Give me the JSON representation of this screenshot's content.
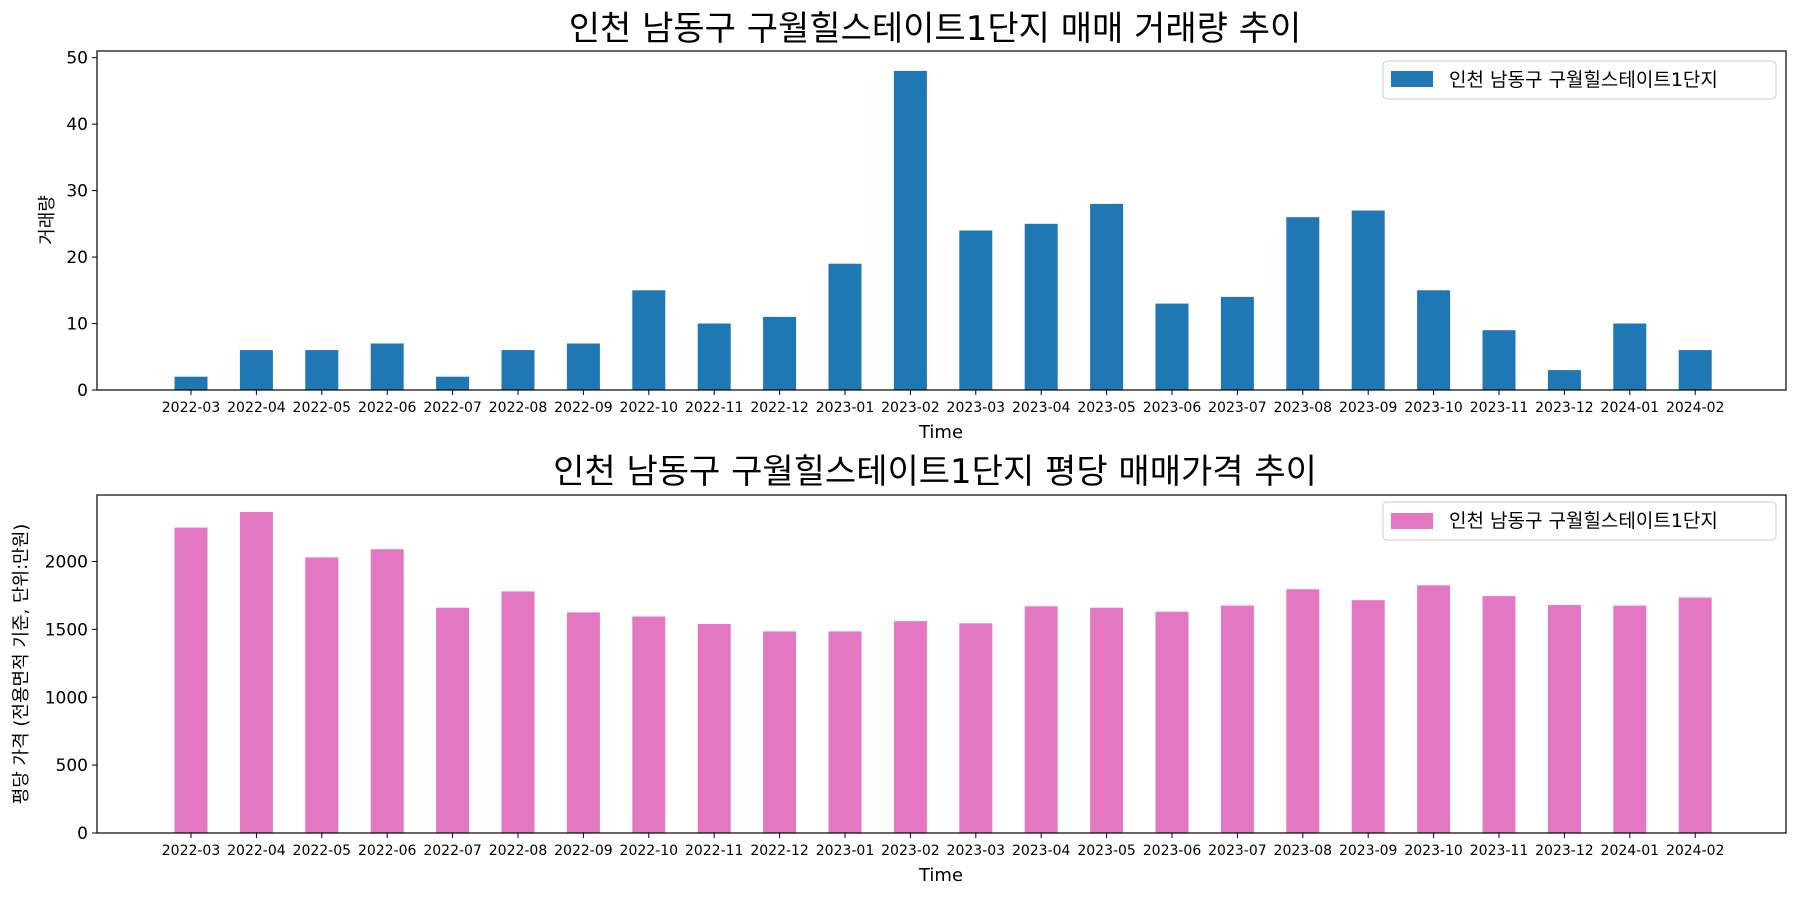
{
  "chart_data": [
    {
      "type": "bar",
      "title": "인천 남동구 구월힐스테이트1단지 매매 거래량 추이",
      "xlabel": "Time",
      "ylabel": "거래량",
      "ylim": [
        0,
        51
      ],
      "yticks": [
        0,
        10,
        20,
        30,
        40,
        50
      ],
      "grid": false,
      "legend_position": "top-right",
      "categories": [
        "2022-03",
        "2022-04",
        "2022-05",
        "2022-06",
        "2022-07",
        "2022-08",
        "2022-09",
        "2022-10",
        "2022-11",
        "2022-12",
        "2023-01",
        "2023-02",
        "2023-03",
        "2023-04",
        "2023-05",
        "2023-06",
        "2023-07",
        "2023-08",
        "2023-09",
        "2023-10",
        "2023-11",
        "2023-12",
        "2024-01",
        "2024-02"
      ],
      "series": [
        {
          "name": "인천 남동구 구월힐스테이트1단지",
          "color": "#1f77b4",
          "values": [
            2,
            6,
            6,
            7,
            2,
            6,
            7,
            15,
            10,
            11,
            19,
            48,
            24,
            25,
            28,
            13,
            14,
            26,
            27,
            15,
            9,
            3,
            10,
            6
          ]
        }
      ]
    },
    {
      "type": "bar",
      "title": "인천 남동구 구월힐스테이트1단지 평당 매매가격 추이",
      "xlabel": "Time",
      "ylabel": "평당 가격 (전용면적 기준, 단위:만원)",
      "ylim": [
        0,
        2490
      ],
      "yticks": [
        0,
        500,
        1000,
        1500,
        2000
      ],
      "grid": false,
      "legend_position": "top-right",
      "categories": [
        "2022-03",
        "2022-04",
        "2022-05",
        "2022-06",
        "2022-07",
        "2022-08",
        "2022-09",
        "2022-10",
        "2022-11",
        "2022-12",
        "2023-01",
        "2023-02",
        "2023-03",
        "2023-04",
        "2023-05",
        "2023-06",
        "2023-07",
        "2023-08",
        "2023-09",
        "2023-10",
        "2023-11",
        "2023-12",
        "2024-01",
        "2024-02"
      ],
      "series": [
        {
          "name": "인천 남동구 구월힐스테이트1단지",
          "color": "#e377c2",
          "values": [
            2250,
            2365,
            2030,
            2090,
            1660,
            1780,
            1625,
            1595,
            1540,
            1485,
            1485,
            1560,
            1545,
            1670,
            1660,
            1630,
            1675,
            1795,
            1715,
            1825,
            1745,
            1680,
            1675,
            1735
          ]
        }
      ]
    }
  ]
}
